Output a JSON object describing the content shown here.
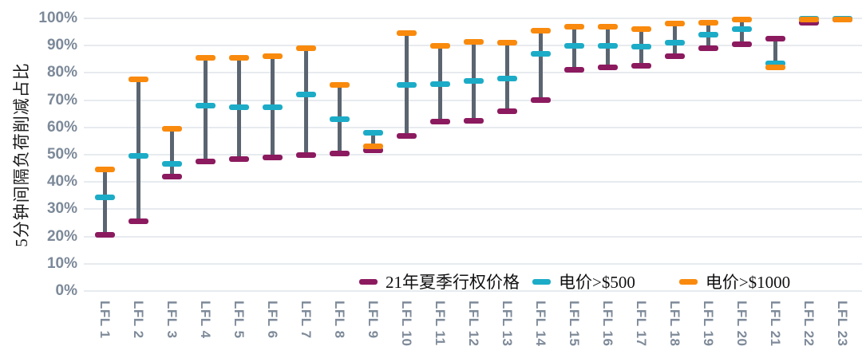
{
  "chart": {
    "y_axis_title": "5分钟间隔负荷削减占比"
  },
  "chart_data": {
    "type": "range-dash",
    "title": "",
    "xlabel": "",
    "ylabel": "5分钟间隔负荷削减占比",
    "ylim": [
      0,
      100
    ],
    "grid": true,
    "legend_position": "bottom-inside",
    "y_ticks": [
      {
        "value": 100,
        "label": "100%"
      },
      {
        "value": 90,
        "label": "90%"
      },
      {
        "value": 80,
        "label": "80%"
      },
      {
        "value": 70,
        "label": "70%"
      },
      {
        "value": 60,
        "label": "60%"
      },
      {
        "value": 50,
        "label": "50%"
      },
      {
        "value": 40,
        "label": "40%"
      },
      {
        "value": 30,
        "label": "30%"
      },
      {
        "value": 20,
        "label": "20%"
      },
      {
        "value": 10,
        "label": "10%"
      },
      {
        "value": 0,
        "label": "0%"
      }
    ],
    "categories": [
      "LFL 1",
      "LFL 2",
      "LFL 3",
      "LFL 4",
      "LFL 5",
      "LFL 6",
      "LFL 7",
      "LFL 8",
      "LFL 9",
      "LFL 10",
      "LFL 11",
      "LFL 12",
      "LFL 13",
      "LFL 14",
      "LFL 15",
      "LFL 16",
      "LFL 17",
      "LFL 18",
      "LFL 19",
      "LFL 20",
      "LFL 21",
      "LFL 22",
      "LFL 23"
    ],
    "series": [
      {
        "name": "21年夏季行权价格",
        "color": "#8c1a5f",
        "values": [
          20.5,
          25.5,
          42,
          47.5,
          48.5,
          49,
          50,
          50.5,
          51.5,
          57,
          62,
          62.5,
          66,
          70,
          81,
          82,
          82.5,
          86,
          89,
          90.5,
          92.5,
          98.5,
          99.5
        ]
      },
      {
        "name": "电价>$500",
        "color": "#1cacc7",
        "values": [
          34.5,
          49.5,
          46.5,
          68,
          67.5,
          67.5,
          72,
          63,
          58,
          75.5,
          76,
          77,
          78,
          87,
          90,
          90,
          89.5,
          91,
          94,
          96,
          83.5,
          100,
          100
        ]
      },
      {
        "name": "电价>$1000",
        "color": "#f98a0d",
        "values": [
          44.5,
          77.5,
          59.5,
          85.5,
          85.5,
          86,
          89,
          75.5,
          53,
          94.5,
          90,
          91.5,
          91,
          95.5,
          97,
          97,
          96,
          98,
          98.5,
          99.5,
          82,
          99.5,
          99.5
        ]
      }
    ],
    "connector_color": "#5b6571",
    "gridline_color": "#e7ebef",
    "axis_label_color": "#7c8999"
  }
}
